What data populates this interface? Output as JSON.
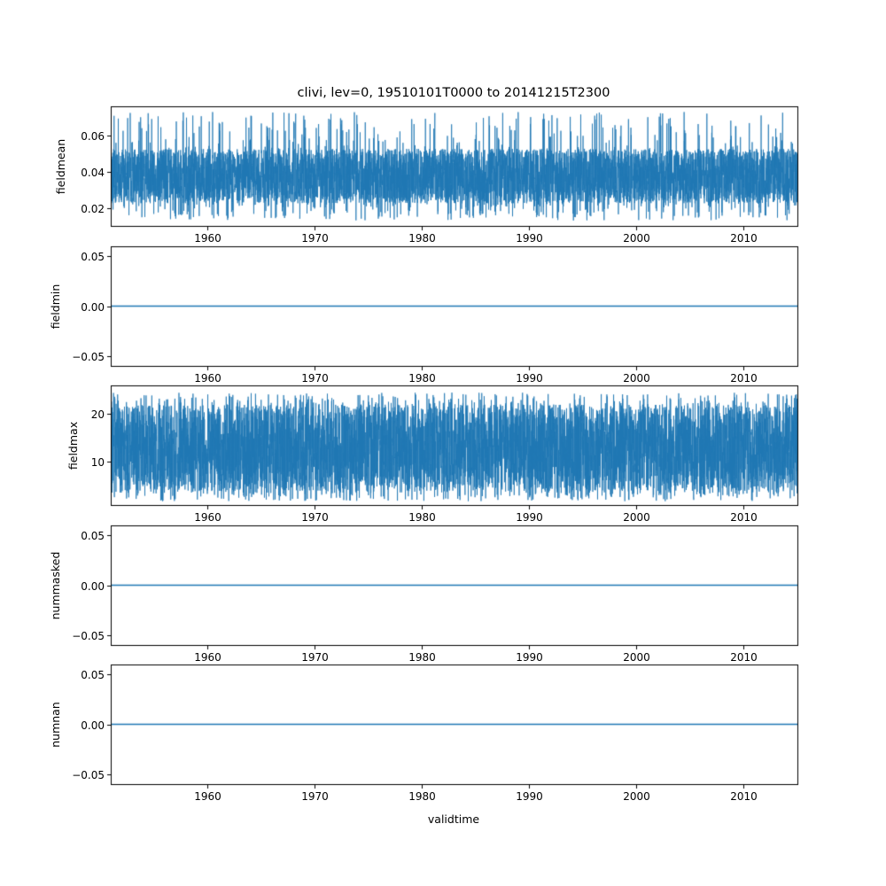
{
  "figure": {
    "title": "clivi, lev=0, 19510101T0000 to 20141215T2300",
    "xlabel": "validtime",
    "line_color": "#1f77b4",
    "background_color": "#ffffff",
    "axis_color": "#000000"
  },
  "chart_data": [
    {
      "type": "line",
      "ylabel": "fieldmean",
      "x_range_years": [
        1951,
        2015
      ],
      "x_ticks": [
        1960,
        1970,
        1980,
        1990,
        2000,
        2010
      ],
      "x_tick_labels": [
        "1960",
        "1970",
        "1980",
        "1990",
        "2000",
        "2010"
      ],
      "ylim": [
        0.01,
        0.076
      ],
      "y_ticks": [
        0.02,
        0.04,
        0.06
      ],
      "y_tick_labels": [
        "0.02",
        "0.04",
        "0.06"
      ],
      "series": {
        "kind": "noisy-band",
        "description": "dense noisy hourly time series of field mean",
        "band": [
          0.0225,
          0.0525
        ],
        "spike_min": 0.013,
        "spike_max": 0.073,
        "seed": 42
      }
    },
    {
      "type": "line",
      "ylabel": "fieldmin",
      "x_range_years": [
        1951,
        2015
      ],
      "x_ticks": [
        1960,
        1970,
        1980,
        1990,
        2000,
        2010
      ],
      "x_tick_labels": [
        "1960",
        "1970",
        "1980",
        "1990",
        "2000",
        "2010"
      ],
      "ylim": [
        -0.06,
        0.06
      ],
      "y_ticks": [
        -0.05,
        0.0,
        0.05
      ],
      "y_tick_labels": [
        "−0.05",
        "0.00",
        "0.05"
      ],
      "series": {
        "kind": "constant",
        "description": "field minimum, constant zero line",
        "value": 0.0
      }
    },
    {
      "type": "line",
      "ylabel": "fieldmax",
      "x_range_years": [
        1951,
        2015
      ],
      "x_ticks": [
        1960,
        1970,
        1980,
        1990,
        2000,
        2010
      ],
      "x_tick_labels": [
        "1960",
        "1970",
        "1980",
        "1990",
        "2000",
        "2010"
      ],
      "ylim": [
        1,
        26
      ],
      "y_ticks": [
        10,
        20
      ],
      "y_tick_labels": [
        "10",
        "20"
      ],
      "series": {
        "kind": "noisy-band",
        "description": "dense noisy hourly time series of field maximum",
        "band": [
          4.0,
          22.0
        ],
        "spike_min": 1.8,
        "spike_max": 24.5,
        "seed": 7
      }
    },
    {
      "type": "line",
      "ylabel": "nummasked",
      "x_range_years": [
        1951,
        2015
      ],
      "x_ticks": [
        1960,
        1970,
        1980,
        1990,
        2000,
        2010
      ],
      "x_tick_labels": [
        "1960",
        "1970",
        "1980",
        "1990",
        "2000",
        "2010"
      ],
      "ylim": [
        -0.06,
        0.06
      ],
      "y_ticks": [
        -0.05,
        0.0,
        0.05
      ],
      "y_tick_labels": [
        "−0.05",
        "0.00",
        "0.05"
      ],
      "series": {
        "kind": "constant",
        "description": "number of masked points, constant zero line",
        "value": 0.0
      }
    },
    {
      "type": "line",
      "ylabel": "numnan",
      "x_range_years": [
        1951,
        2015
      ],
      "x_ticks": [
        1960,
        1970,
        1980,
        1990,
        2000,
        2010
      ],
      "x_tick_labels": [
        "1960",
        "1970",
        "1980",
        "1990",
        "2000",
        "2010"
      ],
      "ylim": [
        -0.06,
        0.06
      ],
      "y_ticks": [
        -0.05,
        0.0,
        0.05
      ],
      "y_tick_labels": [
        "−0.05",
        "0.00",
        "0.05"
      ],
      "series": {
        "kind": "constant",
        "description": "number of NaN points, constant zero line",
        "value": 0.0
      }
    }
  ]
}
